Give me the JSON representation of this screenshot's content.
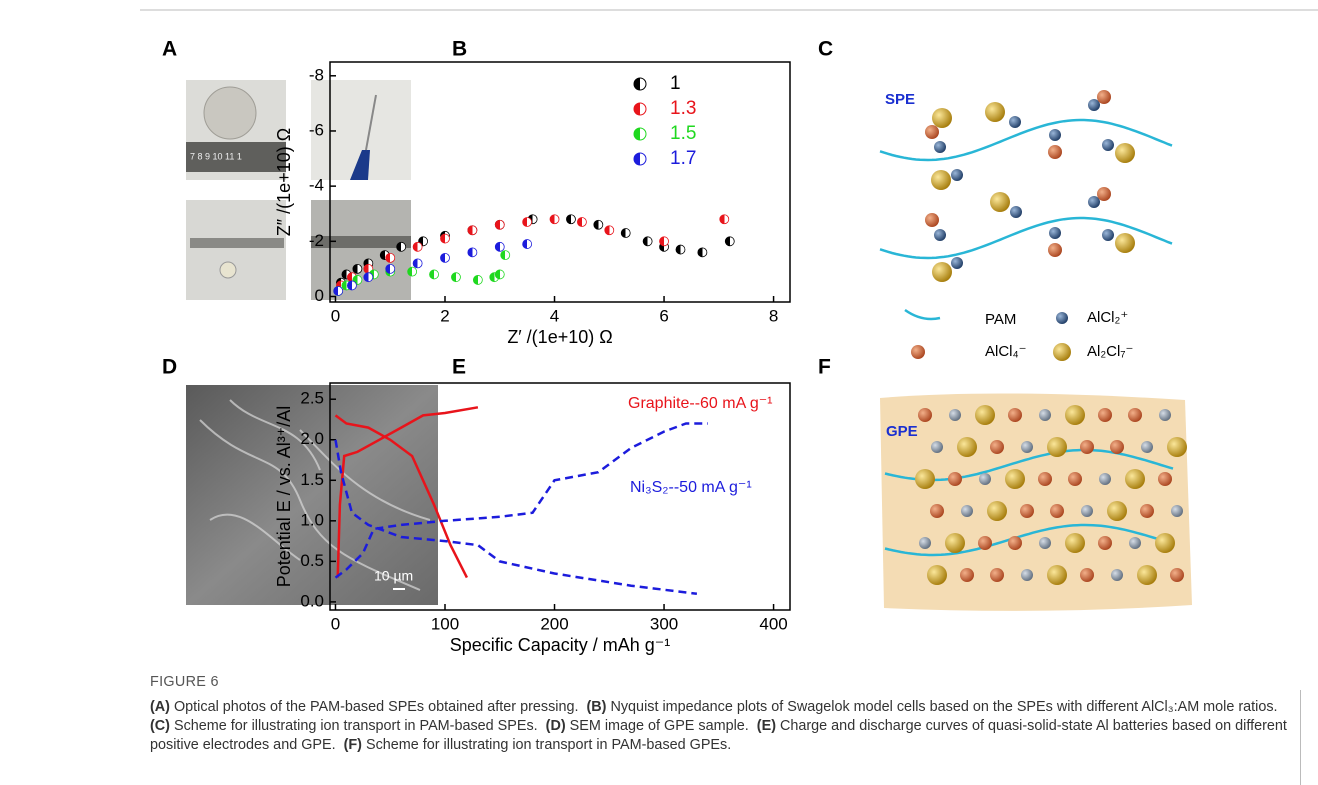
{
  "panels": {
    "a": "A",
    "b": "B",
    "c": "C",
    "d": "D",
    "e": "E",
    "f": "F"
  },
  "photo_a": {
    "ruler": "7 8 9 10 11 1"
  },
  "photo_d": {
    "scale_bar": "10 µm"
  },
  "scheme_c": {
    "title": "SPE",
    "legend": [
      "PAM",
      "AlCl₂⁺",
      "AlCl₄⁻",
      "Al₂Cl₇⁻"
    ]
  },
  "scheme_f": {
    "title": "GPE"
  },
  "chart_data": [
    {
      "type": "scatter",
      "x_label": "Z′ /(1e+10) Ω",
      "y_label": "Z″ /(1e+10) Ω",
      "xlim": [
        -0.1,
        8.3
      ],
      "ylim": [
        0.2,
        -8.5
      ],
      "xticks": [
        0,
        2,
        4,
        6,
        8
      ],
      "yticks": [
        0,
        -2,
        -4,
        -6,
        -8
      ],
      "legend": "upper right",
      "series": [
        {
          "name": "1",
          "color": "#000000",
          "x": [
            0.1,
            0.2,
            0.4,
            0.6,
            0.9,
            1.2,
            1.6,
            2.0,
            2.5,
            3.0,
            3.6,
            4.3,
            4.8,
            5.3,
            5.7,
            6.0,
            6.3,
            6.7,
            7.2
          ],
          "values": [
            -0.5,
            -0.8,
            -1.0,
            -1.2,
            -1.5,
            -1.8,
            -2.0,
            -2.2,
            -2.4,
            -2.6,
            -2.8,
            -2.8,
            -2.6,
            -2.3,
            -2.0,
            -1.8,
            -1.7,
            -1.6,
            -2.0
          ]
        },
        {
          "name": "1.3",
          "color": "#e8141b",
          "x": [
            0.1,
            0.3,
            0.6,
            1.0,
            1.5,
            2.0,
            2.5,
            3.0,
            3.5,
            4.0,
            4.5,
            5.0,
            6.0,
            7.1
          ],
          "values": [
            -0.4,
            -0.7,
            -1.0,
            -1.4,
            -1.8,
            -2.1,
            -2.4,
            -2.6,
            -2.7,
            -2.8,
            -2.7,
            -2.4,
            -2.0,
            -2.8
          ]
        },
        {
          "name": "1.5",
          "color": "#1fd81f",
          "x": [
            0.05,
            0.2,
            0.4,
            0.7,
            1.0,
            1.4,
            1.8,
            2.2,
            2.6,
            2.9,
            3.0,
            3.1
          ],
          "values": [
            -0.2,
            -0.4,
            -0.6,
            -0.8,
            -0.9,
            -0.9,
            -0.8,
            -0.7,
            -0.6,
            -0.7,
            -0.8,
            -1.5
          ]
        },
        {
          "name": "1.7",
          "color": "#1c1cdc",
          "x": [
            0.05,
            0.3,
            0.6,
            1.0,
            1.5,
            2.0,
            2.5,
            3.0,
            3.5
          ],
          "values": [
            -0.2,
            -0.4,
            -0.7,
            -1.0,
            -1.2,
            -1.4,
            -1.6,
            -1.8,
            -1.9
          ]
        }
      ]
    },
    {
      "type": "line",
      "x_label": "Specific Capacity / mAh g⁻¹",
      "y_label": "Potential E / vs. Al³⁺/Al",
      "xlim": [
        -5,
        415
      ],
      "ylim": [
        -0.1,
        2.7
      ],
      "xticks": [
        0,
        100,
        200,
        300,
        400
      ],
      "yticks": [
        {
          "value": 0,
          "label": "0.0"
        },
        {
          "value": 0.5,
          "label": "0.5"
        },
        {
          "value": 1,
          "label": "1.0"
        },
        {
          "value": 1.5,
          "label": "1.5"
        },
        {
          "value": 2,
          "label": "2.0"
        },
        {
          "value": 2.5,
          "label": "2.5"
        }
      ],
      "series": [
        {
          "name": "Graphite--60 mA g⁻¹",
          "color": "#e8141b",
          "dash": false,
          "x": [
            2,
            4,
            8,
            20,
            40,
            60,
            80,
            100,
            130,
            null,
            0,
            10,
            30,
            50,
            70,
            90,
            105,
            120
          ],
          "values": [
            0.3,
            1.2,
            1.8,
            1.85,
            2.0,
            2.15,
            2.3,
            2.33,
            2.4,
            null,
            2.3,
            2.2,
            2.15,
            2.0,
            1.8,
            1.2,
            0.7,
            0.3
          ]
        },
        {
          "name": "Ni₃S₂--50 mA g⁻¹",
          "color": "#1c1cdc",
          "dash": true,
          "x": [
            0,
            10,
            25,
            35,
            60,
            100,
            150,
            180,
            200,
            240,
            270,
            300,
            320,
            340,
            null,
            0,
            5,
            15,
            30,
            60,
            100,
            130,
            150,
            200,
            270,
            330
          ],
          "values": [
            0.3,
            0.4,
            0.6,
            0.9,
            0.95,
            1.0,
            1.05,
            1.1,
            1.5,
            1.6,
            1.9,
            2.1,
            2.2,
            2.2,
            null,
            2.0,
            1.6,
            1.1,
            0.95,
            0.8,
            0.75,
            0.7,
            0.5,
            0.35,
            0.2,
            0.1
          ]
        }
      ]
    }
  ],
  "caption": {
    "label": "FIGURE 6",
    "items": [
      {
        "tag": "(A)",
        "text": "Optical photos of the PAM-based SPEs obtained after pressing."
      },
      {
        "tag": "(B)",
        "text": "Nyquist impedance plots of Swagelok model cells based on the SPEs with different AlCl₃:AM mole ratios."
      },
      {
        "tag": "(C)",
        "text": "Scheme for illustrating ion transport in PAM-based SPEs."
      },
      {
        "tag": "(D)",
        "text": "SEM image of GPE sample."
      },
      {
        "tag": "(E)",
        "text": "Charge and discharge curves of quasi-solid-state Al batteries based on different positive electrodes and GPE."
      },
      {
        "tag": "(F)",
        "text": "Scheme for illustrating ion transport in PAM-based GPEs."
      }
    ]
  }
}
